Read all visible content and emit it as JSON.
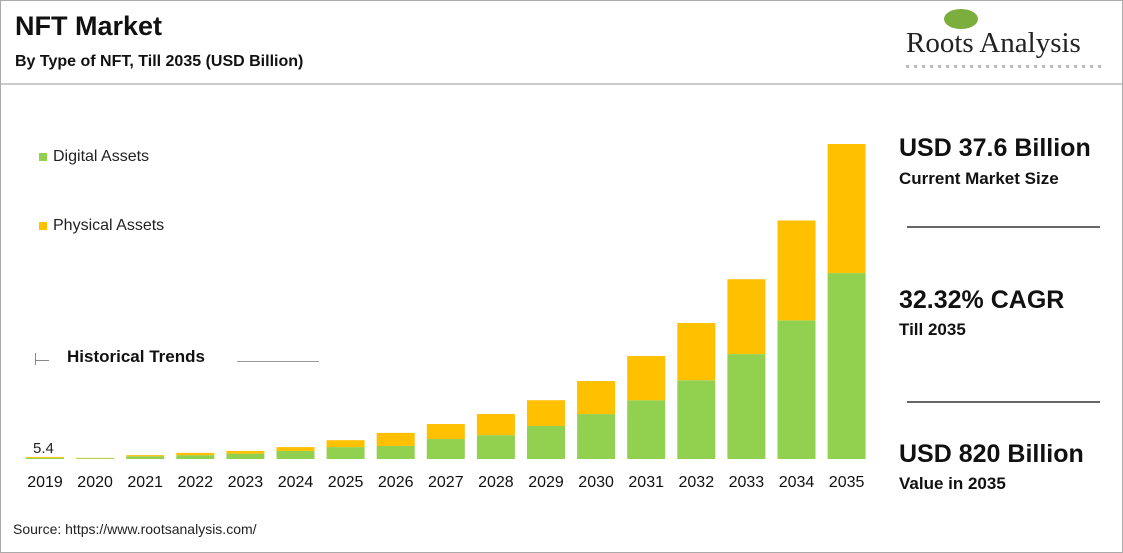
{
  "header": {
    "title": "NFT Market",
    "subtitle": "By Type of NFT, Till 2035 (USD Billion)",
    "logo_text": "Roots Analysis"
  },
  "kpis": [
    {
      "value": "USD 37.6 Billion",
      "label": "Current Market Size"
    },
    {
      "value": "32.32% CAGR",
      "label": "Till 2035"
    },
    {
      "value": "USD 820 Billion",
      "label": "Value in 2035"
    }
  ],
  "annotation": {
    "historical": "Historical Trends",
    "first_value": "5.4"
  },
  "source": "Source: https://www.rootsanalysis.com/",
  "chart_data": {
    "type": "bar",
    "stacked": true,
    "title": "NFT Market",
    "subtitle": "By Type of NFT, Till 2035 (USD Billion)",
    "categories": [
      "2019",
      "2020",
      "2021",
      "2022",
      "2023",
      "2024",
      "2025",
      "2026",
      "2027",
      "2028",
      "2029",
      "2030",
      "2031",
      "2032",
      "2033",
      "2034",
      "2035"
    ],
    "series": [
      {
        "name": "Digital Assets",
        "color": "#92d050",
        "values": [
          3,
          2,
          7,
          10,
          14,
          21,
          31,
          34,
          52,
          62,
          86,
          117,
          153,
          205,
          273,
          361,
          484
        ]
      },
      {
        "name": "Physical Assets",
        "color": "#ffc000",
        "values": [
          2.4,
          1,
          3,
          6,
          7,
          10,
          18,
          34,
          39,
          55,
          67,
          86,
          115,
          149,
          195,
          260,
          336
        ]
      }
    ],
    "ylim": [
      0,
      820
    ],
    "grid": false,
    "legend": "top-left",
    "yaxis_visible": false
  }
}
